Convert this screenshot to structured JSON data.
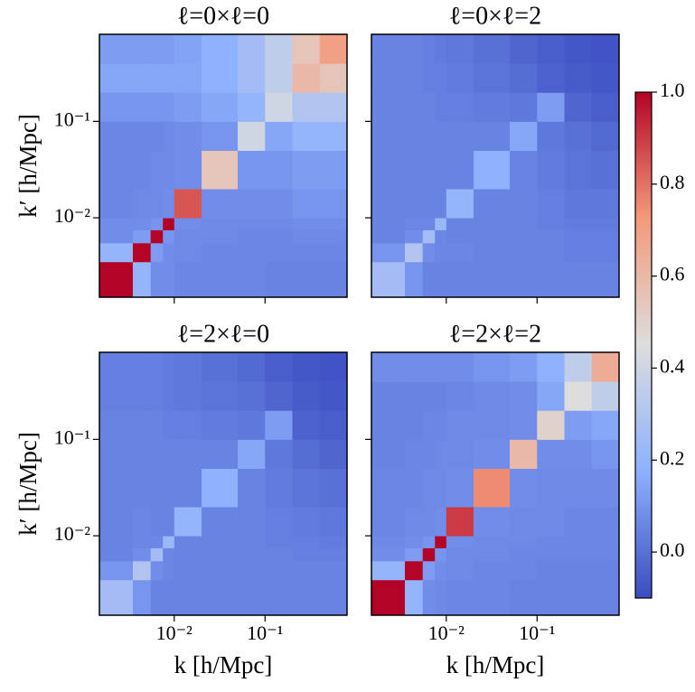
{
  "chart_data": [
    {
      "type": "heatmap",
      "title": "ℓ=0×ℓ=0",
      "y_label": "k′ [h/Mpc]",
      "bins": [
        0.0015,
        0.0035,
        0.0055,
        0.0075,
        0.01,
        0.02,
        0.05,
        0.1,
        0.2,
        0.4,
        0.8
      ],
      "xlim": [
        0.0015,
        0.8
      ],
      "ylim": [
        0.0015,
        0.8
      ],
      "log_scale": true,
      "xticks": [
        {
          "value": 0.01,
          "label": "10⁻²"
        },
        {
          "value": 0.1,
          "label": "10⁻¹"
        }
      ],
      "yticks": [
        {
          "value": 0.01,
          "label": "10⁻²"
        },
        {
          "value": 0.1,
          "label": "10⁻¹"
        }
      ],
      "values": [
        [
          1,
          0.2,
          0.08,
          0.08,
          0.06,
          0.06,
          0.06,
          0.05,
          0.05,
          0.05
        ],
        [
          0.2,
          1,
          0.12,
          0.08,
          0.07,
          0.06,
          0.06,
          0.06,
          0.06,
          0.06
        ],
        [
          0.08,
          0.12,
          1,
          0.1,
          0.07,
          0.07,
          0.06,
          0.06,
          0.07,
          0.07
        ],
        [
          0.08,
          0.08,
          0.1,
          1,
          0.08,
          0.07,
          0.07,
          0.07,
          0.08,
          0.08
        ],
        [
          0.06,
          0.07,
          0.07,
          0.08,
          0.85,
          0.08,
          0.08,
          0.08,
          0.1,
          0.1
        ],
        [
          0.06,
          0.06,
          0.07,
          0.07,
          0.08,
          0.55,
          0.1,
          0.1,
          0.12,
          0.12
        ],
        [
          0.06,
          0.06,
          0.06,
          0.07,
          0.08,
          0.1,
          0.4,
          0.15,
          0.2,
          0.2
        ],
        [
          0.1,
          0.1,
          0.1,
          0.1,
          0.12,
          0.15,
          0.2,
          0.4,
          0.3,
          0.3
        ],
        [
          0.15,
          0.15,
          0.15,
          0.15,
          0.15,
          0.18,
          0.25,
          0.35,
          0.6,
          0.55
        ],
        [
          0.12,
          0.12,
          0.12,
          0.12,
          0.14,
          0.18,
          0.25,
          0.35,
          0.55,
          0.7
        ]
      ]
    },
    {
      "type": "heatmap",
      "title": "ℓ=0×ℓ=2",
      "bins": [
        0.0015,
        0.0035,
        0.0055,
        0.0075,
        0.01,
        0.02,
        0.05,
        0.1,
        0.2,
        0.4,
        0.8
      ],
      "xlim": [
        0.0015,
        0.8
      ],
      "ylim": [
        0.0015,
        0.8
      ],
      "log_scale": true,
      "xticks": [
        {
          "value": 0.01,
          "label": "10⁻²"
        },
        {
          "value": 0.1,
          "label": "10⁻¹"
        }
      ],
      "yticks": [
        {
          "value": 0.01,
          "label": "10⁻²"
        },
        {
          "value": 0.1,
          "label": "10⁻¹"
        }
      ],
      "values": [
        [
          0.25,
          0.1,
          0.05,
          0.05,
          0.05,
          0.05,
          0.05,
          0.05,
          0.05,
          0.05
        ],
        [
          0.1,
          0.3,
          0.08,
          0.06,
          0.06,
          0.05,
          0.05,
          0.05,
          0.04,
          0.04
        ],
        [
          0.05,
          0.08,
          0.25,
          0.06,
          0.05,
          0.05,
          0.05,
          0.05,
          0.04,
          0.04
        ],
        [
          0.05,
          0.06,
          0.06,
          0.22,
          0.05,
          0.05,
          0.05,
          0.04,
          0.03,
          0.03
        ],
        [
          0.05,
          0.05,
          0.05,
          0.05,
          0.2,
          0.05,
          0.05,
          0.04,
          0.02,
          0.02
        ],
        [
          0.05,
          0.05,
          0.05,
          0.05,
          0.05,
          0.18,
          0.05,
          0.03,
          0.01,
          0
        ],
        [
          0.05,
          0.05,
          0.05,
          0.05,
          0.05,
          0.05,
          0.15,
          0.02,
          0,
          -0.02
        ],
        [
          0.05,
          0.05,
          0.05,
          0.04,
          0.04,
          0.03,
          0.02,
          0.12,
          -0.03,
          -0.05
        ],
        [
          0.05,
          0.05,
          0.04,
          0.04,
          0.03,
          0.01,
          -0.01,
          -0.04,
          -0.06,
          -0.07
        ],
        [
          0.05,
          0.05,
          0.04,
          0.03,
          0.02,
          0,
          -0.03,
          -0.05,
          -0.07,
          -0.08
        ]
      ]
    },
    {
      "type": "heatmap",
      "title": "ℓ=2×ℓ=0",
      "x_label": "k [h/Mpc]",
      "y_label": "k′ [h/Mpc]",
      "bins": [
        0.0015,
        0.0035,
        0.0055,
        0.0075,
        0.01,
        0.02,
        0.05,
        0.1,
        0.2,
        0.4,
        0.8
      ],
      "xlim": [
        0.0015,
        0.8
      ],
      "ylim": [
        0.0015,
        0.8
      ],
      "log_scale": true,
      "xticks": [
        {
          "value": 0.01,
          "label": "10⁻²"
        },
        {
          "value": 0.1,
          "label": "10⁻¹"
        }
      ],
      "yticks": [
        {
          "value": 0.01,
          "label": "10⁻²"
        },
        {
          "value": 0.1,
          "label": "10⁻¹"
        }
      ],
      "values": [
        [
          0.25,
          0.1,
          0.05,
          0.05,
          0.05,
          0.05,
          0.05,
          0.05,
          0.05,
          0.05
        ],
        [
          0.1,
          0.3,
          0.08,
          0.06,
          0.05,
          0.05,
          0.05,
          0.05,
          0.05,
          0.05
        ],
        [
          0.05,
          0.08,
          0.25,
          0.06,
          0.05,
          0.05,
          0.05,
          0.05,
          0.04,
          0.04
        ],
        [
          0.05,
          0.06,
          0.06,
          0.22,
          0.05,
          0.05,
          0.05,
          0.04,
          0.04,
          0.03
        ],
        [
          0.05,
          0.06,
          0.05,
          0.05,
          0.2,
          0.05,
          0.05,
          0.04,
          0.03,
          0.02
        ],
        [
          0.05,
          0.05,
          0.05,
          0.05,
          0.05,
          0.18,
          0.05,
          0.03,
          0.01,
          0
        ],
        [
          0.05,
          0.05,
          0.05,
          0.05,
          0.05,
          0.05,
          0.15,
          0.02,
          -0.01,
          -0.03
        ],
        [
          0.05,
          0.05,
          0.05,
          0.04,
          0.04,
          0.03,
          0.02,
          0.12,
          -0.04,
          -0.05
        ],
        [
          0.04,
          0.04,
          0.04,
          0.03,
          0.02,
          0.01,
          0,
          -0.03,
          -0.06,
          -0.07
        ],
        [
          0.04,
          0.04,
          0.04,
          0.03,
          0.02,
          0,
          -0.02,
          -0.05,
          -0.07,
          -0.08
        ]
      ]
    },
    {
      "type": "heatmap",
      "title": "ℓ=2×ℓ=2",
      "x_label": "k [h/Mpc]",
      "bins": [
        0.0015,
        0.0035,
        0.0055,
        0.0075,
        0.01,
        0.02,
        0.05,
        0.1,
        0.2,
        0.4,
        0.8
      ],
      "xlim": [
        0.0015,
        0.8
      ],
      "ylim": [
        0.0015,
        0.8
      ],
      "log_scale": true,
      "xticks": [
        {
          "value": 0.01,
          "label": "10⁻²"
        },
        {
          "value": 0.1,
          "label": "10⁻¹"
        }
      ],
      "yticks": [
        {
          "value": 0.01,
          "label": "10⁻²"
        },
        {
          "value": 0.1,
          "label": "10⁻¹"
        }
      ],
      "values": [
        [
          1,
          0.2,
          0.08,
          0.07,
          0.06,
          0.06,
          0.05,
          0.05,
          0.05,
          0.05
        ],
        [
          0.2,
          1,
          0.12,
          0.08,
          0.07,
          0.06,
          0.06,
          0.05,
          0.05,
          0.05
        ],
        [
          0.08,
          0.12,
          1,
          0.1,
          0.07,
          0.07,
          0.06,
          0.06,
          0.06,
          0.06
        ],
        [
          0.07,
          0.08,
          0.1,
          1,
          0.08,
          0.07,
          0.07,
          0.06,
          0.06,
          0.06
        ],
        [
          0.06,
          0.07,
          0.07,
          0.08,
          0.9,
          0.08,
          0.07,
          0.07,
          0.06,
          0.06
        ],
        [
          0.06,
          0.06,
          0.07,
          0.07,
          0.08,
          0.75,
          0.08,
          0.07,
          0.07,
          0.07
        ],
        [
          0.05,
          0.06,
          0.06,
          0.07,
          0.07,
          0.08,
          0.6,
          0.08,
          0.08,
          0.1
        ],
        [
          0.05,
          0.05,
          0.06,
          0.06,
          0.07,
          0.07,
          0.08,
          0.5,
          0.12,
          0.15
        ],
        [
          0.05,
          0.05,
          0.05,
          0.05,
          0.06,
          0.07,
          0.08,
          0.15,
          0.45,
          0.35
        ],
        [
          0.08,
          0.08,
          0.08,
          0.08,
          0.08,
          0.1,
          0.12,
          0.18,
          0.35,
          0.65
        ]
      ]
    },
    {
      "type": "colorbar",
      "clim": [
        -0.1,
        1.0
      ],
      "colors": [
        "#3b4cc0",
        "#8db0fe",
        "#dddddd",
        "#f49a7b",
        "#b40426"
      ],
      "ticks": [
        {
          "value": 0,
          "label": "0.0"
        },
        {
          "value": 0.2,
          "label": "0.2"
        },
        {
          "value": 0.4,
          "label": "0.4"
        },
        {
          "value": 0.6,
          "label": "0.6"
        },
        {
          "value": 0.8,
          "label": "0.8"
        },
        {
          "value": 1.0,
          "label": "1.0"
        }
      ]
    }
  ]
}
